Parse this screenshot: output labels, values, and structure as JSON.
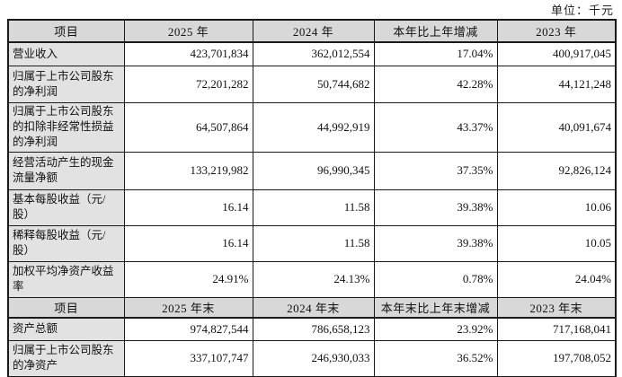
{
  "page": {
    "unit_label": "单位：千元"
  },
  "colors": {
    "header_bg": "#d8d8d8",
    "label_column_bg": "#e2e2e2",
    "border": "#1a1a1a",
    "text": "#111111"
  },
  "table": {
    "section1": {
      "headers": [
        "项目",
        "2025 年",
        "2024 年",
        "本年比上年增减",
        "2023 年"
      ],
      "rows": [
        {
          "label": "营业收入",
          "y2025": "423,701,834",
          "y2024": "362,012,554",
          "change": "17.04%",
          "y2023": "400,917,045"
        },
        {
          "label": "归属于上市公司股东的净利润",
          "y2025": "72,201,282",
          "y2024": "50,744,682",
          "change": "42.28%",
          "y2023": "44,121,248"
        },
        {
          "label": "归属于上市公司股东的扣除非经常性损益的净利润",
          "y2025": "64,507,864",
          "y2024": "44,992,919",
          "change": "43.37%",
          "y2023": "40,091,674"
        },
        {
          "label": "经营活动产生的现金流量净额",
          "y2025": "133,219,982",
          "y2024": "96,990,345",
          "change": "37.35%",
          "y2023": "92,826,124"
        },
        {
          "label": "基本每股收益（元/股）",
          "y2025": "16.14",
          "y2024": "11.58",
          "change": "39.38%",
          "y2023": "10.06"
        },
        {
          "label": "稀释每股收益（元/股）",
          "y2025": "16.14",
          "y2024": "11.58",
          "change": "39.38%",
          "y2023": "10.05"
        },
        {
          "label": "加权平均净资产收益率",
          "y2025": "24.91%",
          "y2024": "24.13%",
          "change": "0.78%",
          "y2023": "24.04%"
        }
      ]
    },
    "section2": {
      "headers": [
        "项目",
        "2025 年末",
        "2024 年末",
        "本年末比上年末增减",
        "2023 年末"
      ],
      "rows": [
        {
          "label": "资产总额",
          "y2025": "974,827,544",
          "y2024": "786,658,123",
          "change": "23.92%",
          "y2023": "717,168,041"
        },
        {
          "label": "归属于上市公司股东的净资产",
          "y2025": "337,107,747",
          "y2024": "246,930,033",
          "change": "36.52%",
          "y2023": "197,708,052"
        }
      ]
    }
  }
}
